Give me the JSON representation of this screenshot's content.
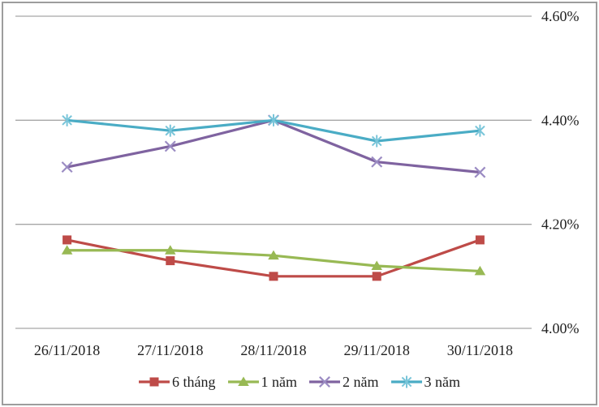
{
  "chart_data": {
    "type": "line",
    "title": "",
    "x_categories": [
      "26/11/2018",
      "27/11/2018",
      "28/11/2018",
      "29/11/2018",
      "30/11/2018"
    ],
    "y_axis": {
      "side": "right",
      "min": 4.0,
      "max": 4.6,
      "tick_labels": [
        "4.00%",
        "4.20%",
        "4.40%",
        "4.60%"
      ]
    },
    "grid": true,
    "legend_position": "bottom",
    "series": [
      {
        "name": "6 tháng",
        "color": "#be4b48",
        "marker": "square",
        "marker_color": "#be4b48",
        "values": [
          4.17,
          4.13,
          4.1,
          4.1,
          4.17
        ]
      },
      {
        "name": "1 năm",
        "color": "#98b954",
        "marker": "triangle",
        "marker_color": "#98b954",
        "values": [
          4.15,
          4.15,
          4.14,
          4.12,
          4.11
        ]
      },
      {
        "name": "2 năm",
        "color": "#7f63a0",
        "marker": "x",
        "marker_color": "#9b8cc3",
        "values": [
          4.31,
          4.35,
          4.4,
          4.32,
          4.3
        ]
      },
      {
        "name": "3 năm",
        "color": "#4aacc5",
        "marker": "asterisk",
        "marker_color": "#79c5d9",
        "values": [
          4.4,
          4.38,
          4.4,
          4.36,
          4.38
        ]
      }
    ],
    "colors": {
      "frame": "#9d9d9d",
      "gridline": "#a6a6a6",
      "text": "#1f1f1f"
    }
  }
}
